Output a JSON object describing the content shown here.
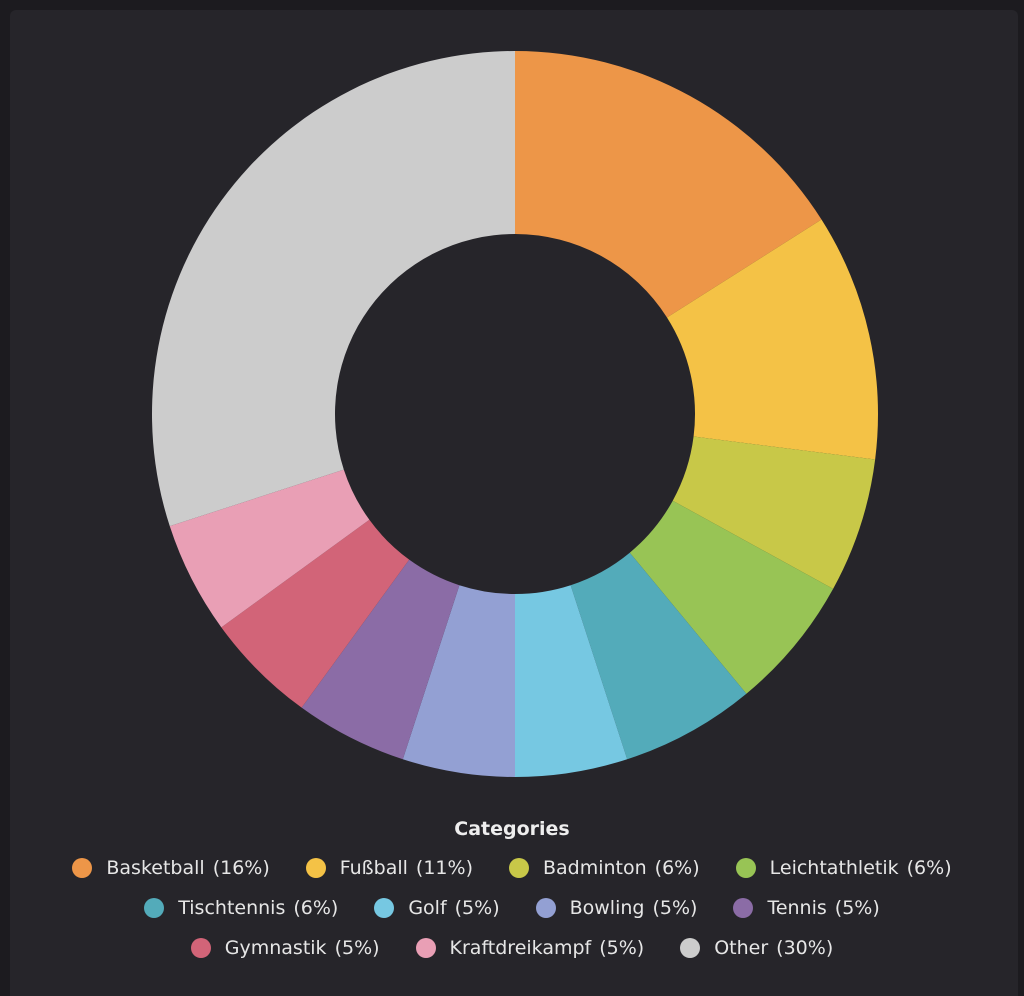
{
  "chart_data": {
    "type": "donut",
    "legend_title": "Categories",
    "categories": [
      "Basketball",
      "Fußball",
      "Badminton",
      "Leichtathletik",
      "Tischtennis",
      "Golf",
      "Bowling",
      "Tennis",
      "Gymnastik",
      "Kraftdreikampf",
      "Other"
    ],
    "values": [
      16,
      11,
      6,
      6,
      6,
      5,
      5,
      5,
      5,
      5,
      30
    ],
    "value_labels": [
      "(16%)",
      "(11%)",
      "(6%)",
      "(6%)",
      "(6%)",
      "(5%)",
      "(5%)",
      "(5%)",
      "(5%)",
      "(5%)",
      "(30%)"
    ],
    "colors": [
      "#ed9648",
      "#f4c246",
      "#c8c848",
      "#98c455",
      "#53abba",
      "#76c8e2",
      "#93a0d3",
      "#8b6ca6",
      "#d26478",
      "#e99fb5",
      "#cccccc"
    ]
  }
}
